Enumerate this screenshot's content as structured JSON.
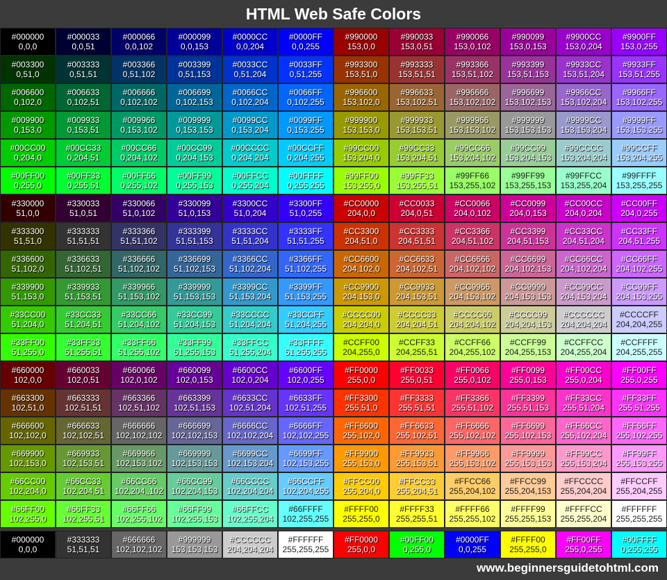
{
  "header": {
    "title": "HTML Web Safe Colors"
  },
  "grid": {
    "rows": [
      [
        [
          "#000000",
          "0,0,0"
        ],
        [
          "#000033",
          "0,0,51"
        ],
        [
          "#000066",
          "0,0,102"
        ],
        [
          "#000099",
          "0,0,153"
        ],
        [
          "#0000CC",
          "0,0,204"
        ],
        [
          "#0000FF",
          "0,0,255"
        ],
        [
          "#990000",
          "153,0,0"
        ],
        [
          "#990033",
          "153,0,51"
        ],
        [
          "#990066",
          "153,0,102"
        ],
        [
          "#990099",
          "153,0,153"
        ],
        [
          "#9900CC",
          "153,0,204"
        ],
        [
          "#9900FF",
          "153,0,255"
        ]
      ],
      [
        [
          "#003300",
          "0,51,0"
        ],
        [
          "#003333",
          "0,51,51"
        ],
        [
          "#003366",
          "0,51,102"
        ],
        [
          "#003399",
          "0,51,153"
        ],
        [
          "#0033CC",
          "0,51,204"
        ],
        [
          "#0033FF",
          "0,51,255"
        ],
        [
          "#993300",
          "153,51,0"
        ],
        [
          "#993333",
          "153,51,51"
        ],
        [
          "#993366",
          "153,51,102"
        ],
        [
          "#993399",
          "153,51,153"
        ],
        [
          "#9933CC",
          "153,51,204"
        ],
        [
          "#9933FF",
          "153,51,255"
        ]
      ],
      [
        [
          "#006600",
          "0,102,0"
        ],
        [
          "#006633",
          "0,102,51"
        ],
        [
          "#006666",
          "0,102,102"
        ],
        [
          "#006699",
          "0,102,153"
        ],
        [
          "#0066CC",
          "0,102,204"
        ],
        [
          "#0066FF",
          "0,102,255"
        ],
        [
          "#996600",
          "153,102,0"
        ],
        [
          "#996633",
          "153,102,51"
        ],
        [
          "#996666",
          "153,102,102"
        ],
        [
          "#996699",
          "153,102,153"
        ],
        [
          "#9966CC",
          "153,102,204"
        ],
        [
          "#9966FF",
          "153,102,255"
        ]
      ],
      [
        [
          "#009900",
          "0,153,0"
        ],
        [
          "#009933",
          "0,153,51"
        ],
        [
          "#009966",
          "0,153,102"
        ],
        [
          "#009999",
          "0,153,153"
        ],
        [
          "#0099CC",
          "0,153,204"
        ],
        [
          "#0099FF",
          "0,153,255"
        ],
        [
          "#999900",
          "153,153,0"
        ],
        [
          "#999933",
          "153,153,51"
        ],
        [
          "#999966",
          "153,153,102"
        ],
        [
          "#999999",
          "153,153,153"
        ],
        [
          "#9999CC",
          "153,153,204"
        ],
        [
          "#9999FF",
          "153,153,255"
        ]
      ],
      [
        [
          "#00CC00",
          "0,204,0"
        ],
        [
          "#00CC33",
          "0,204,51"
        ],
        [
          "#00CC66",
          "0,204,102"
        ],
        [
          "#00CC99",
          "0,204,153"
        ],
        [
          "#00CCCC",
          "0,204,204"
        ],
        [
          "#00CCFF",
          "0,204,255"
        ],
        [
          "#99CC00",
          "153,204,0"
        ],
        [
          "#99CC33",
          "153,204,51"
        ],
        [
          "#99CC66",
          "153,204,102"
        ],
        [
          "#99CC99",
          "153,204,153"
        ],
        [
          "#99CCCC",
          "153,204,204"
        ],
        [
          "#99CCFF",
          "153,204,255"
        ]
      ],
      [
        [
          "#00FF00",
          "0,255,0"
        ],
        [
          "#00FF33",
          "0,255,51"
        ],
        [
          "#00FF66",
          "0,255,102"
        ],
        [
          "#00FF99",
          "0,255,153"
        ],
        [
          "#00FFCC",
          "0,255,204"
        ],
        [
          "#00FFFF",
          "0,255,255"
        ],
        [
          "#99FF00",
          "153,255,0"
        ],
        [
          "#99FF33",
          "153,255,51"
        ],
        [
          "#99FF66",
          "153,255,102"
        ],
        [
          "#99FF99",
          "153,255,153"
        ],
        [
          "#99FFCC",
          "153,255,204"
        ],
        [
          "#99FFFF",
          "153,255,255"
        ]
      ],
      [
        [
          "#330000",
          "51,0,0"
        ],
        [
          "#330033",
          "51,0,51"
        ],
        [
          "#330066",
          "51,0,102"
        ],
        [
          "#330099",
          "51,0,153"
        ],
        [
          "#3300CC",
          "51,0,204"
        ],
        [
          "#3300FF",
          "51,0,255"
        ],
        [
          "#CC0000",
          "204,0,0"
        ],
        [
          "#CC0033",
          "204,0,51"
        ],
        [
          "#CC0066",
          "204,0,102"
        ],
        [
          "#CC0099",
          "204,0,153"
        ],
        [
          "#CC00CC",
          "204,0,204"
        ],
        [
          "#CC00FF",
          "204,0,255"
        ]
      ],
      [
        [
          "#333300",
          "51,51,0"
        ],
        [
          "#333333",
          "51,51,51"
        ],
        [
          "#333366",
          "51,51,102"
        ],
        [
          "#333399",
          "51,51,153"
        ],
        [
          "#3333CC",
          "51,51,204"
        ],
        [
          "#3333FF",
          "51,51,255"
        ],
        [
          "#CC3300",
          "204,51,0"
        ],
        [
          "#CC3333",
          "204,51,51"
        ],
        [
          "#CC3366",
          "204,51,102"
        ],
        [
          "#CC3399",
          "204,51,153"
        ],
        [
          "#CC33CC",
          "204,51,204"
        ],
        [
          "#CC33FF",
          "204,51,255"
        ]
      ],
      [
        [
          "#336600",
          "51,102,0"
        ],
        [
          "#336633",
          "51,102,51"
        ],
        [
          "#336666",
          "51,102,102"
        ],
        [
          "#336699",
          "51,102,153"
        ],
        [
          "#3366CC",
          "51,102,204"
        ],
        [
          "#3366FF",
          "51,102,255"
        ],
        [
          "#CC6600",
          "204,102,0"
        ],
        [
          "#CC6633",
          "204,102,51"
        ],
        [
          "#CC6666",
          "204,102,102"
        ],
        [
          "#CC6699",
          "204,102,153"
        ],
        [
          "#CC66CC",
          "204,102,204"
        ],
        [
          "#CC66FF",
          "204,102,255"
        ]
      ],
      [
        [
          "#339900",
          "51,153,0"
        ],
        [
          "#339933",
          "51,153,51"
        ],
        [
          "#339966",
          "51,153,102"
        ],
        [
          "#339999",
          "51,153,153"
        ],
        [
          "#3399CC",
          "51,153,204"
        ],
        [
          "#3399FF",
          "51,153,255"
        ],
        [
          "#CC9900",
          "204,153,0"
        ],
        [
          "#CC9933",
          "204,153,51"
        ],
        [
          "#CC9966",
          "204,153,102"
        ],
        [
          "#CC9999",
          "204,153,153"
        ],
        [
          "#CC99CC",
          "204,153,204"
        ],
        [
          "#CC99FF",
          "204,153,255"
        ]
      ],
      [
        [
          "#33CC00",
          "51,204,0"
        ],
        [
          "#33CC33",
          "51,204,51"
        ],
        [
          "#33CC66",
          "51,204,102"
        ],
        [
          "#33CC99",
          "51,204,153"
        ],
        [
          "#33CCCC",
          "51,204,204"
        ],
        [
          "#33CCFF",
          "51,204,255"
        ],
        [
          "#CCCC00",
          "204,204,0"
        ],
        [
          "#CCCC33",
          "204,204,51"
        ],
        [
          "#CCCC66",
          "204,204,102"
        ],
        [
          "#CCCC99",
          "204,204,153"
        ],
        [
          "#CCCCCC",
          "204,204,204"
        ],
        [
          "#CCCCFF",
          "204,204,255"
        ]
      ],
      [
        [
          "#33FF00",
          "51,255,0"
        ],
        [
          "#33FF33",
          "51,255,51"
        ],
        [
          "#33FF66",
          "51,255,102"
        ],
        [
          "#33FF99",
          "51,255,153"
        ],
        [
          "#33FFCC",
          "51,255,204"
        ],
        [
          "#33FFFF",
          "51,255,255"
        ],
        [
          "#CCFF00",
          "204,255,0"
        ],
        [
          "#CCFF33",
          "204,255,51"
        ],
        [
          "#CCFF66",
          "204,255,102"
        ],
        [
          "#CCFF99",
          "204,255,153"
        ],
        [
          "#CCFFCC",
          "204,255,204"
        ],
        [
          "#CCFFFF",
          "204,255,255"
        ]
      ],
      [
        [
          "#660000",
          "102,0,0"
        ],
        [
          "#660033",
          "102,0,51"
        ],
        [
          "#660066",
          "102,0,102"
        ],
        [
          "#660099",
          "102,0,153"
        ],
        [
          "#6600CC",
          "102,0,204"
        ],
        [
          "#6600FF",
          "102,0,255"
        ],
        [
          "#FF0000",
          "255,0,0"
        ],
        [
          "#FF0033",
          "255,0,51"
        ],
        [
          "#FF0066",
          "255,0,102"
        ],
        [
          "#FF0099",
          "255,0,153"
        ],
        [
          "#FF00CC",
          "255,0,204"
        ],
        [
          "#FF00FF",
          "255,0,255"
        ]
      ],
      [
        [
          "#663300",
          "102,51,0"
        ],
        [
          "#663333",
          "102,51,51"
        ],
        [
          "#663366",
          "102,51,102"
        ],
        [
          "#663399",
          "102,51,153"
        ],
        [
          "#6633CC",
          "102,51,204"
        ],
        [
          "#6633FF",
          "102,51,255"
        ],
        [
          "#FF3300",
          "255,51,0"
        ],
        [
          "#FF3333",
          "255,51,51"
        ],
        [
          "#FF3366",
          "255,51,102"
        ],
        [
          "#FF3399",
          "255,51,153"
        ],
        [
          "#FF33CC",
          "255,51,204"
        ],
        [
          "#FF33FF",
          "255,51,255"
        ]
      ],
      [
        [
          "#666600",
          "102,102,0"
        ],
        [
          "#666633",
          "102,102,51"
        ],
        [
          "#666666",
          "102,102,102"
        ],
        [
          "#666699",
          "102,102,153"
        ],
        [
          "#6666CC",
          "102,102,204"
        ],
        [
          "#6666FF",
          "102,102,255"
        ],
        [
          "#FF6600",
          "255,102,0"
        ],
        [
          "#FF6633",
          "255,102,51"
        ],
        [
          "#FF6666",
          "255,102,102"
        ],
        [
          "#FF6699",
          "255,102,153"
        ],
        [
          "#FF66CC",
          "255,102,204"
        ],
        [
          "#FF66FF",
          "255,102,255"
        ]
      ],
      [
        [
          "#669900",
          "102,153,0"
        ],
        [
          "#669933",
          "102,153,51"
        ],
        [
          "#669966",
          "102,153,102"
        ],
        [
          "#669999",
          "102,153,153"
        ],
        [
          "#6699CC",
          "102,153,204"
        ],
        [
          "#6699FF",
          "102,153,255"
        ],
        [
          "#FF9900",
          "255,153,0"
        ],
        [
          "#FF9933",
          "255,153,51"
        ],
        [
          "#FF9966",
          "255,153,102"
        ],
        [
          "#FF9999",
          "255,153,153"
        ],
        [
          "#FF99CC",
          "255,153,204"
        ],
        [
          "#FF99FF",
          "255,153,255"
        ]
      ],
      [
        [
          "#66CC00",
          "102,204,0"
        ],
        [
          "#66CC33",
          "102,204,51"
        ],
        [
          "#66CC66",
          "102,204,,102"
        ],
        [
          "#66CC99",
          "102,204,153"
        ],
        [
          "#66CCCC",
          "102,204,204"
        ],
        [
          "#66CCFF",
          "102,204,255"
        ],
        [
          "#FFCC00",
          "255,204,0"
        ],
        [
          "#FFCC33",
          "255,204,51"
        ],
        [
          "#FFCC66",
          "255,204,102"
        ],
        [
          "#FFCC99",
          "255,204,153"
        ],
        [
          "#FFCCCC",
          "255,204,204"
        ],
        [
          "#FFCCFF",
          "255,204,255"
        ]
      ],
      [
        [
          "#66FF00",
          "102,255,0"
        ],
        [
          "#66FF33",
          "102,255,51"
        ],
        [
          "#66FF66",
          "102,255,102"
        ],
        [
          "#66FF99",
          "102,255,153"
        ],
        [
          "#66FFCC",
          "102,255,204"
        ],
        [
          "#66FFFF",
          "102,255,255"
        ],
        [
          "#FFFF00",
          "255,255,0"
        ],
        [
          "#FFFF33",
          "255,255,51"
        ],
        [
          "#FFFF66",
          "255,255,102"
        ],
        [
          "#FFFF99",
          "255,255,153"
        ],
        [
          "#FFFFCC",
          "255,255,204"
        ],
        [
          "#FFFFFF",
          "255,255,255"
        ]
      ]
    ]
  },
  "basic": {
    "cells": [
      [
        "#000000",
        "0,0,0"
      ],
      [
        "#333333",
        "51,51,51"
      ],
      [
        "#666666",
        "102,102,102"
      ],
      [
        "#999999",
        "153,153,153"
      ],
      [
        "#CCCCCC",
        "204,204,204"
      ],
      [
        "#FFFFFF",
        "255,255,255"
      ],
      [
        "#FF0000",
        "255,0,0"
      ],
      [
        "#00FF00",
        "0,255,0"
      ],
      [
        "#0000FF",
        "0,0,255"
      ],
      [
        "#FFFF00",
        "255,255,0"
      ],
      [
        "#FF00FF",
        "255,0,255"
      ],
      [
        "#00FFFF",
        "0,255,255"
      ]
    ]
  },
  "footer": {
    "url": "www.beginnersguidetohtml.com"
  }
}
